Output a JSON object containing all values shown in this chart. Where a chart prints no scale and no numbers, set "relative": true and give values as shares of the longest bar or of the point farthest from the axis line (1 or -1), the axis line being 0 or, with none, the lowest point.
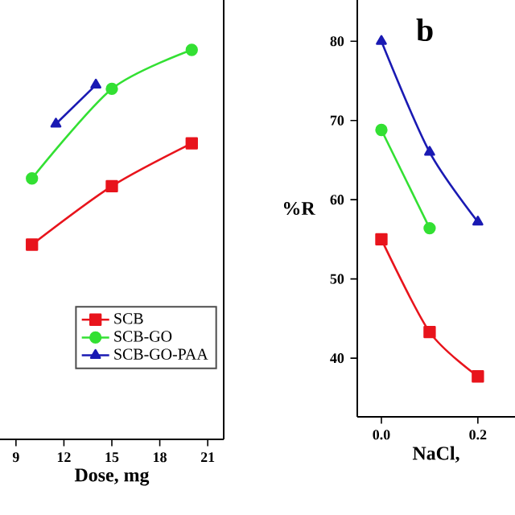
{
  "chart_data": [
    {
      "type": "line",
      "relative": true,
      "xlabel": "Dose, mg",
      "xlim": [
        8,
        22
      ],
      "xticks": [
        9,
        12,
        15,
        18,
        21
      ],
      "legend": "bottom right",
      "tick_labels": "x",
      "series": [
        {
          "name": "SCB",
          "color": "#e8141c",
          "marker": "square",
          "x": [
            10,
            15,
            20
          ],
          "values": [
            0.5,
            0.65,
            0.76
          ]
        },
        {
          "name": "SCB-GO",
          "color": "#33e033",
          "marker": "circle",
          "x": [
            10,
            15,
            20
          ],
          "values": [
            0.67,
            0.9,
            1
          ]
        },
        {
          "name": "SCB-GO-PAA",
          "color": "#1a1ab3",
          "marker": "triangle",
          "x": [
            11.5,
            14
          ],
          "values": [
            0.81,
            0.91
          ]
        }
      ]
    },
    {
      "type": "line",
      "xlabel": "NaCl,",
      "ylabel": "%R",
      "annotations": [
        "b"
      ],
      "xlim": [
        -0.05,
        0.277
      ],
      "ylim": [
        32.6,
        85.2
      ],
      "xticks": [
        {
          "value": 0.0,
          "label": "0.0"
        },
        {
          "value": 0.2,
          "label": "0.2"
        }
      ],
      "yticks": [
        40,
        50,
        60,
        70,
        80
      ],
      "series": [
        {
          "color": "#e8141c",
          "marker": "square",
          "x": [
            0.0,
            0.1,
            0.2
          ],
          "values": [
            55,
            43.3,
            37.7
          ]
        },
        {
          "color": "#33e033",
          "marker": "circle",
          "x": [
            0.0,
            0.1
          ],
          "values": [
            68.8,
            56.4
          ]
        },
        {
          "color": "#1a1ab3",
          "marker": "triangle",
          "x": [
            0.0,
            0.1,
            0.2
          ],
          "values": [
            80,
            66,
            57.2
          ]
        }
      ]
    }
  ]
}
